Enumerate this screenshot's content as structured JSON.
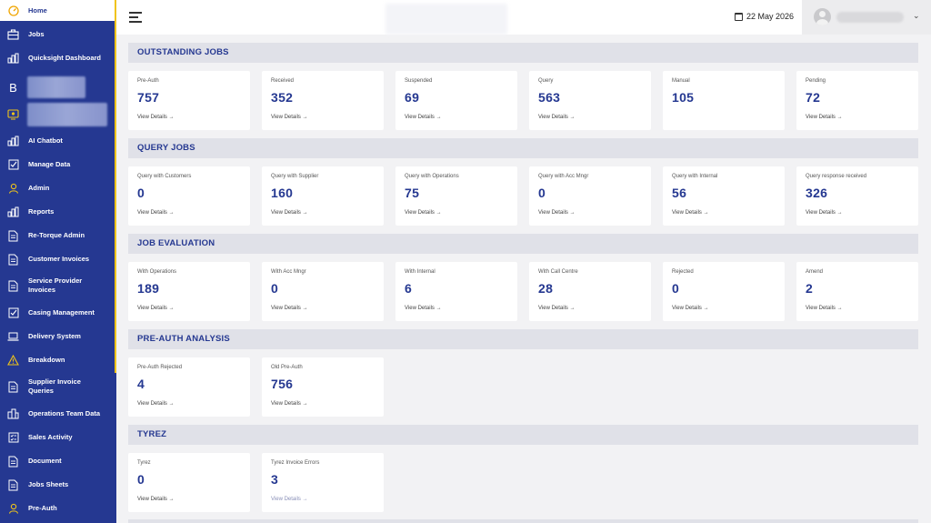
{
  "sidebar": {
    "items": [
      {
        "label": "Home",
        "icon": "dashboard-icon",
        "active": true
      },
      {
        "label": "Jobs",
        "icon": "briefcase-icon"
      },
      {
        "label": "Quicksight Dashboard",
        "icon": "bar-chart-icon"
      },
      {
        "label": "AI Chatbot",
        "icon": "bar-chart-icon"
      },
      {
        "label": "Manage Data",
        "icon": "checkbox-icon"
      },
      {
        "label": "Admin",
        "icon": "user-icon"
      },
      {
        "label": "Reports",
        "icon": "bar-chart-icon"
      },
      {
        "label": "Re-Torque Admin",
        "icon": "document-icon"
      },
      {
        "label": "Customer Invoices",
        "icon": "document-icon"
      },
      {
        "label": "Service Provider Invoices",
        "icon": "document-icon"
      },
      {
        "label": "Casing Management",
        "icon": "checkbox-icon"
      },
      {
        "label": "Delivery System",
        "icon": "laptop-icon"
      },
      {
        "label": "Breakdown",
        "icon": "warning-icon"
      },
      {
        "label": "Supplier Invoice Queries",
        "icon": "document-icon"
      },
      {
        "label": "Operations Team Data",
        "icon": "building-icon"
      },
      {
        "label": "Sales Activity",
        "icon": "checklist-icon"
      },
      {
        "label": "Document",
        "icon": "document-icon"
      },
      {
        "label": "Jobs Sheets",
        "icon": "document-icon"
      },
      {
        "label": "Pre-Auth",
        "icon": "user-icon"
      }
    ],
    "blurred_b_icon": "B"
  },
  "header": {
    "date": "22 May 2026"
  },
  "colors": {
    "sidebar": "#253891",
    "accent": "#f0c419",
    "value": "#253891",
    "section_bg": "#e0e1e8"
  },
  "sections": [
    {
      "title": "OUTSTANDING JOBS",
      "cards": [
        {
          "label": "Pre-Auth",
          "value": "757",
          "link": "View Details →"
        },
        {
          "label": "Received",
          "value": "352",
          "link": "View Details →"
        },
        {
          "label": "Suspended",
          "value": "69",
          "link": "View Details →"
        },
        {
          "label": "Query",
          "value": "563",
          "link": "View Details →"
        },
        {
          "label": "Manual",
          "value": "105",
          "link": ""
        },
        {
          "label": "Pending",
          "value": "72",
          "link": "View Details →"
        }
      ]
    },
    {
      "title": "QUERY JOBS",
      "cards": [
        {
          "label": "Query with Customers",
          "value": "0",
          "link": "View Details →"
        },
        {
          "label": "Query with Supplier",
          "value": "160",
          "link": "View Details →"
        },
        {
          "label": "Query with Operations",
          "value": "75",
          "link": "View Details →"
        },
        {
          "label": "Query with Acc Mngr",
          "value": "0",
          "link": "View Details →"
        },
        {
          "label": "Query with Internal",
          "value": "56",
          "link": "View Details →"
        },
        {
          "label": "Query response received",
          "value": "326",
          "link": "View Details →"
        }
      ]
    },
    {
      "title": "JOB EVALUATION",
      "cards": [
        {
          "label": "With Operations",
          "value": "189",
          "link": "View Details →"
        },
        {
          "label": "With Acc Mngr",
          "value": "0",
          "link": "View Details →"
        },
        {
          "label": "With Internal",
          "value": "6",
          "link": "View Details →"
        },
        {
          "label": "With Call Centre",
          "value": "28",
          "link": "View Details →"
        },
        {
          "label": "Rejected",
          "value": "0",
          "link": "View Details →"
        },
        {
          "label": "Amend",
          "value": "2",
          "link": "View Details →"
        }
      ]
    },
    {
      "title": "PRE-AUTH ANALYSIS",
      "cards": [
        {
          "label": "Pre-Auth Rejected",
          "value": "4",
          "link": "View Details →"
        },
        {
          "label": "Old Pre-Auth",
          "value": "756",
          "link": "View Details →"
        }
      ]
    },
    {
      "title": "TYREZ",
      "cards": [
        {
          "label": "Tyrez",
          "value": "0",
          "link": "View Details →"
        },
        {
          "label": "Tyrez Invoice Errors",
          "value": "3",
          "link": "View Details →"
        }
      ]
    }
  ]
}
